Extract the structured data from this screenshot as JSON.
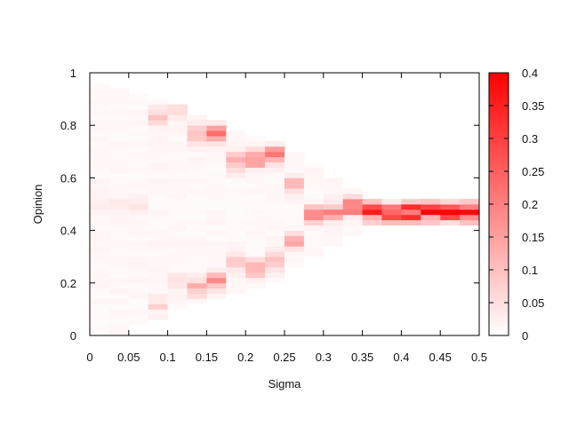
{
  "chart_data": {
    "type": "heatmap",
    "title": "",
    "xlabel": "Sigma",
    "ylabel": "Opinion",
    "xlim": [
      0,
      0.5
    ],
    "ylim": [
      0,
      1
    ],
    "x_ticks": [
      "0",
      "0.05",
      "0.1",
      "0.15",
      "0.2",
      "0.25",
      "0.3",
      "0.35",
      "0.4",
      "0.45",
      "0.5"
    ],
    "y_ticks": [
      "0",
      "0.2",
      "0.4",
      "0.6",
      "0.8",
      "1"
    ],
    "x_bin_width": 0.025,
    "y_bin_width": 0.02,
    "colorbar": {
      "min": 0,
      "max": 0.4,
      "tick_labels": [
        "0",
        "0.05",
        "0.1",
        "0.15",
        "0.2",
        "0.25",
        "0.3",
        "0.35",
        "0.4"
      ],
      "color_low": "#ffffff",
      "color_high": "#ff0000"
    },
    "grid": false,
    "density_profile": [
      {
        "sigma_center": 0.0125,
        "support": [
          0.0,
          0.96
        ],
        "peaks": [
          {
            "y": 0.5,
            "value": 0.02
          }
        ]
      },
      {
        "sigma_center": 0.0375,
        "support": [
          0.0,
          0.94
        ],
        "peaks": [
          {
            "y": 0.5,
            "value": 0.02
          }
        ]
      },
      {
        "sigma_center": 0.0625,
        "support": [
          0.04,
          0.92
        ],
        "peaks": [
          {
            "y": 0.5,
            "value": 0.02
          }
        ]
      },
      {
        "sigma_center": 0.0875,
        "support": [
          0.06,
          0.9
        ],
        "peaks": [
          {
            "y": 0.83,
            "value": 0.07
          },
          {
            "y": 0.12,
            "value": 0.05
          }
        ]
      },
      {
        "sigma_center": 0.1125,
        "support": [
          0.1,
          0.88
        ],
        "peaks": [
          {
            "y": 0.85,
            "value": 0.06
          },
          {
            "y": 0.2,
            "value": 0.05
          }
        ]
      },
      {
        "sigma_center": 0.1375,
        "support": [
          0.13,
          0.84
        ],
        "peaks": [
          {
            "y": 0.76,
            "value": 0.12
          },
          {
            "y": 0.18,
            "value": 0.12
          }
        ]
      },
      {
        "sigma_center": 0.1625,
        "support": [
          0.14,
          0.82
        ],
        "peaks": [
          {
            "y": 0.77,
            "value": 0.15
          },
          {
            "y": 0.21,
            "value": 0.14
          }
        ]
      },
      {
        "sigma_center": 0.1875,
        "support": [
          0.17,
          0.78
        ],
        "peaks": [
          {
            "y": 0.66,
            "value": 0.12
          },
          {
            "y": 0.28,
            "value": 0.12
          }
        ]
      },
      {
        "sigma_center": 0.2125,
        "support": [
          0.18,
          0.76
        ],
        "peaks": [
          {
            "y": 0.67,
            "value": 0.14
          },
          {
            "y": 0.26,
            "value": 0.12
          }
        ]
      },
      {
        "sigma_center": 0.2375,
        "support": [
          0.2,
          0.74
        ],
        "peaks": [
          {
            "y": 0.69,
            "value": 0.16
          },
          {
            "y": 0.28,
            "value": 0.12
          }
        ]
      },
      {
        "sigma_center": 0.2625,
        "support": [
          0.26,
          0.7
        ],
        "peaks": [
          {
            "y": 0.57,
            "value": 0.1
          },
          {
            "y": 0.36,
            "value": 0.1
          }
        ]
      },
      {
        "sigma_center": 0.2875,
        "support": [
          0.3,
          0.66
        ],
        "peaks": [
          {
            "y": 0.46,
            "value": 0.14
          }
        ]
      },
      {
        "sigma_center": 0.3125,
        "support": [
          0.34,
          0.6
        ],
        "peaks": [
          {
            "y": 0.47,
            "value": 0.18
          }
        ]
      },
      {
        "sigma_center": 0.3375,
        "support": [
          0.38,
          0.56
        ],
        "peaks": [
          {
            "y": 0.49,
            "value": 0.2
          }
        ]
      },
      {
        "sigma_center": 0.3625,
        "support": [
          0.42,
          0.52
        ],
        "peaks": [
          {
            "y": 0.47,
            "value": 0.3
          }
        ]
      },
      {
        "sigma_center": 0.3875,
        "support": [
          0.42,
          0.52
        ],
        "peaks": [
          {
            "y": 0.46,
            "value": 0.36
          }
        ]
      },
      {
        "sigma_center": 0.4125,
        "support": [
          0.42,
          0.52
        ],
        "peaks": [
          {
            "y": 0.47,
            "value": 0.34
          }
        ]
      },
      {
        "sigma_center": 0.4375,
        "support": [
          0.42,
          0.52
        ],
        "peaks": [
          {
            "y": 0.47,
            "value": 0.3
          }
        ]
      },
      {
        "sigma_center": 0.4625,
        "support": [
          0.42,
          0.52
        ],
        "peaks": [
          {
            "y": 0.47,
            "value": 0.32
          }
        ]
      },
      {
        "sigma_center": 0.4875,
        "support": [
          0.42,
          0.52
        ],
        "peaks": [
          {
            "y": 0.47,
            "value": 0.34
          }
        ]
      }
    ]
  }
}
